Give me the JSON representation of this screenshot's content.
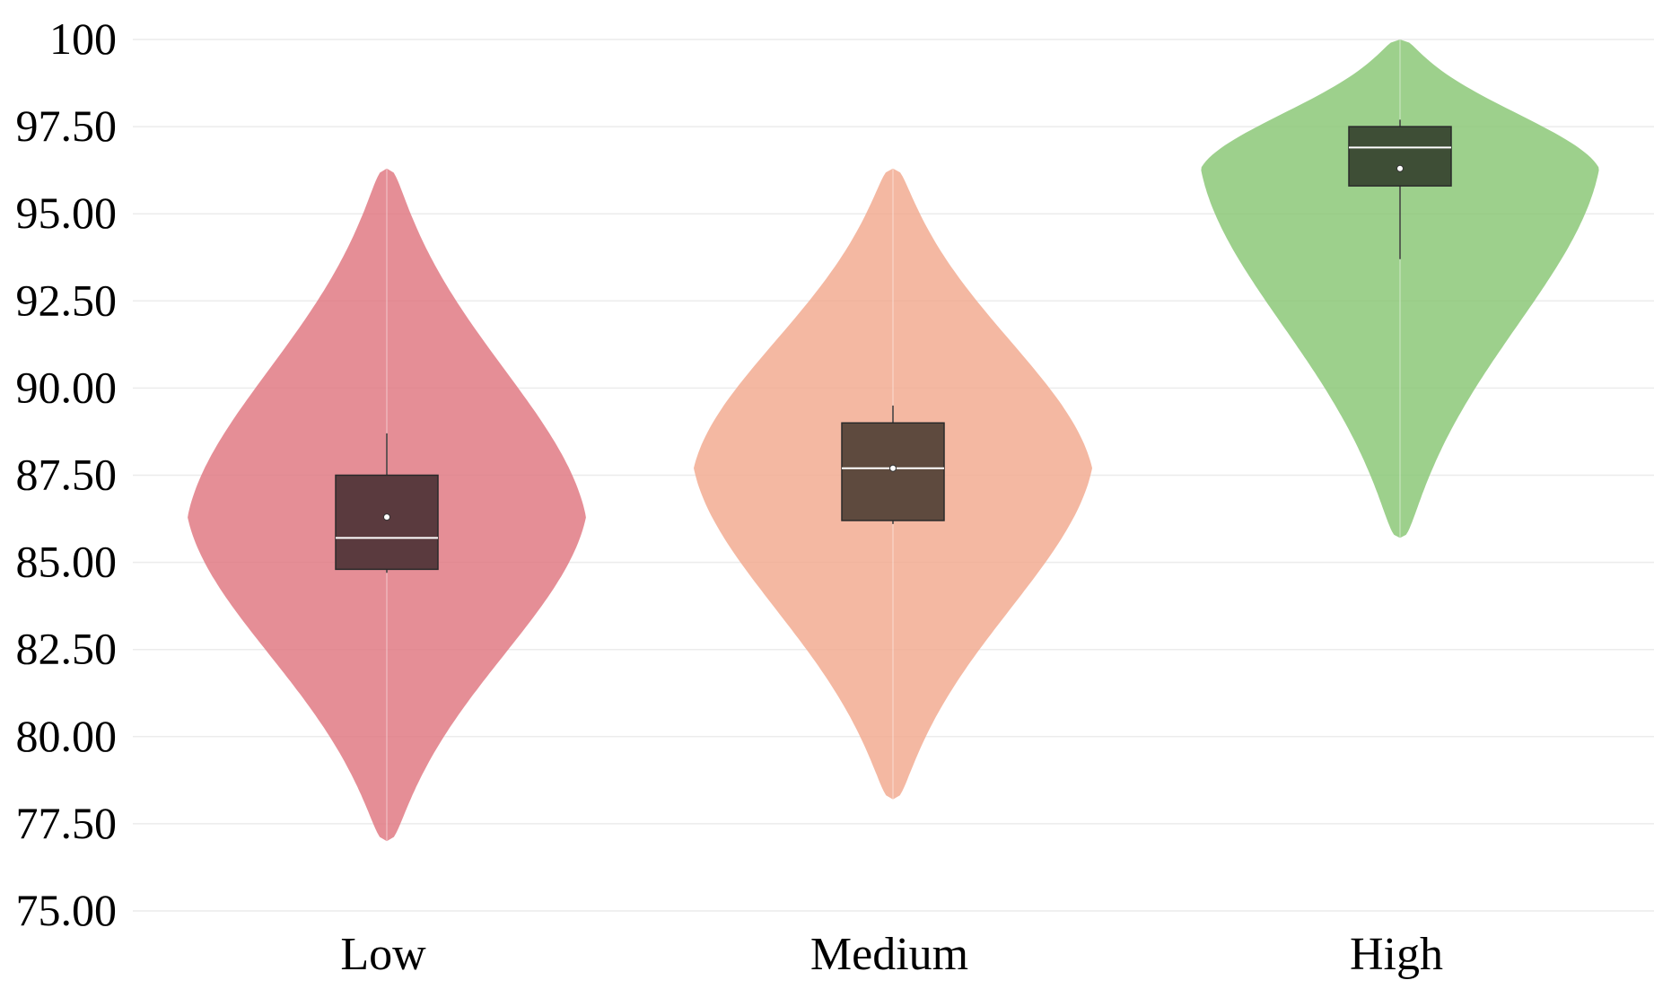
{
  "chart_data": {
    "type": "violin",
    "title": "",
    "xlabel": "",
    "ylabel": "",
    "ylim": [
      75,
      100
    ],
    "y_ticks": [
      "75.00",
      "77.50",
      "80.00",
      "82.50",
      "85.00",
      "87.50",
      "90.00",
      "92.50",
      "95.00",
      "97.50",
      "100"
    ],
    "y_tick_values": [
      75,
      77.5,
      80,
      82.5,
      85,
      87.5,
      90,
      92.5,
      95,
      97.5,
      100
    ],
    "grid": "horizontal",
    "categories": [
      "Low",
      "Medium",
      "High"
    ],
    "series": [
      {
        "category": "Low",
        "color": "#e07a84",
        "box_color": "#5a3a3e",
        "violin_min": 77.0,
        "violin_max": 96.3,
        "violin_peak": 86.3,
        "q1": 84.8,
        "median": 85.7,
        "q3": 87.5,
        "mean": 86.3,
        "whisker_low": 84.7,
        "whisker_high": 88.7
      },
      {
        "category": "Medium",
        "color": "#f2ab92",
        "box_color": "#5e4a3e",
        "violin_min": 78.2,
        "violin_max": 96.3,
        "violin_peak": 87.7,
        "q1": 86.2,
        "median": 87.7,
        "q3": 89.0,
        "mean": 87.7,
        "whisker_low": 86.1,
        "whisker_high": 89.5
      },
      {
        "category": "High",
        "color": "#8cc878",
        "box_color": "#3e4e36",
        "violin_min": 85.7,
        "violin_max": 100.0,
        "violin_peak": 96.3,
        "q1": 95.8,
        "median": 96.9,
        "q3": 97.5,
        "mean": 96.3,
        "whisker_low": 93.7,
        "whisker_high": 97.7
      }
    ]
  }
}
